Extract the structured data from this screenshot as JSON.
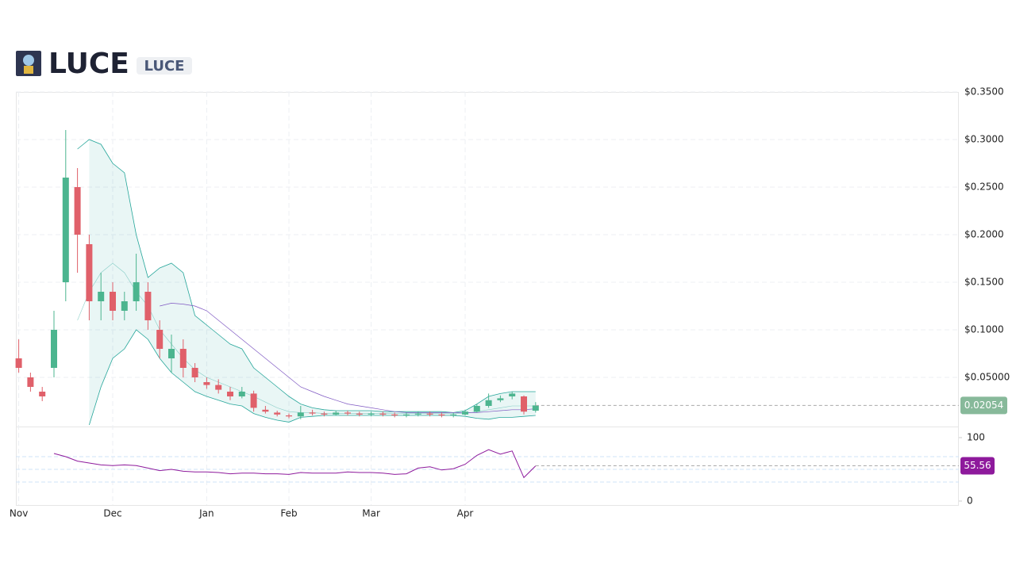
{
  "header": {
    "title": "LUCE",
    "badge": "LUCE"
  },
  "chart_data": {
    "type": "candlestick",
    "categories": [
      "Nov",
      null,
      null,
      null,
      null,
      null,
      null,
      null,
      "Dec",
      null,
      null,
      null,
      null,
      null,
      null,
      null,
      "Jan",
      null,
      null,
      null,
      null,
      null,
      null,
      "Feb",
      null,
      null,
      null,
      null,
      null,
      null,
      "Mar",
      null,
      null,
      null,
      null,
      null,
      null,
      null,
      "Apr",
      null,
      null,
      null,
      null,
      null,
      null
    ],
    "open": [
      0.07,
      0.05,
      0.035,
      0.06,
      0.15,
      0.25,
      0.19,
      0.13,
      0.14,
      0.12,
      0.13,
      0.14,
      0.1,
      0.07,
      0.08,
      0.06,
      0.045,
      0.042,
      0.035,
      0.03,
      0.033,
      0.016,
      0.013,
      0.01,
      0.009,
      0.013,
      0.012,
      0.011,
      0.013,
      0.012,
      0.011,
      0.012,
      0.011,
      0.01,
      0.011,
      0.012,
      0.011,
      0.01,
      0.011,
      0.014,
      0.02,
      0.026,
      0.03,
      0.03,
      0.015
    ],
    "high": [
      0.09,
      0.055,
      0.04,
      0.12,
      0.31,
      0.27,
      0.2,
      0.16,
      0.15,
      0.14,
      0.18,
      0.15,
      0.11,
      0.095,
      0.09,
      0.065,
      0.05,
      0.048,
      0.04,
      0.04,
      0.036,
      0.02,
      0.015,
      0.012,
      0.02,
      0.016,
      0.014,
      0.015,
      0.015,
      0.014,
      0.014,
      0.014,
      0.013,
      0.013,
      0.014,
      0.014,
      0.013,
      0.013,
      0.016,
      0.022,
      0.033,
      0.031,
      0.035,
      0.031,
      0.024
    ],
    "low": [
      0.055,
      0.035,
      0.025,
      0.05,
      0.13,
      0.16,
      0.11,
      0.11,
      0.11,
      0.11,
      0.12,
      0.1,
      0.07,
      0.055,
      0.05,
      0.045,
      0.038,
      0.033,
      0.026,
      0.028,
      0.014,
      0.012,
      0.009,
      0.007,
      0.006,
      0.01,
      0.009,
      0.01,
      0.01,
      0.009,
      0.009,
      0.009,
      0.008,
      0.008,
      0.009,
      0.009,
      0.008,
      0.008,
      0.01,
      0.013,
      0.018,
      0.024,
      0.027,
      0.011,
      0.013
    ],
    "close": [
      0.06,
      0.04,
      0.03,
      0.1,
      0.26,
      0.2,
      0.13,
      0.14,
      0.12,
      0.13,
      0.15,
      0.11,
      0.08,
      0.08,
      0.06,
      0.05,
      0.042,
      0.037,
      0.03,
      0.035,
      0.018,
      0.014,
      0.011,
      0.009,
      0.013,
      0.012,
      0.011,
      0.013,
      0.012,
      0.011,
      0.012,
      0.011,
      0.01,
      0.011,
      0.012,
      0.011,
      0.01,
      0.011,
      0.014,
      0.02,
      0.026,
      0.028,
      0.033,
      0.014,
      0.02054
    ],
    "up_color": "#4cb58f",
    "down_color": "#e0606a",
    "last_color": "#87b99a",
    "ylim": [
      0,
      0.35
    ],
    "yticks": [
      {
        "value": 0.05,
        "label": "$0.05000"
      },
      {
        "value": 0.1,
        "label": "$0.1000"
      },
      {
        "value": 0.15,
        "label": "$0.1500"
      },
      {
        "value": 0.2,
        "label": "$0.2000"
      },
      {
        "value": 0.25,
        "label": "$0.2500"
      },
      {
        "value": 0.3,
        "label": "$0.3000"
      },
      {
        "value": 0.35,
        "label": "$0.3500"
      }
    ],
    "grid": true,
    "bollinger": {
      "color": "#26a69a",
      "upper": [
        null,
        null,
        null,
        null,
        null,
        0.29,
        0.3,
        0.295,
        0.275,
        0.265,
        0.2,
        0.155,
        0.165,
        0.17,
        0.16,
        0.115,
        0.105,
        0.095,
        0.085,
        0.08,
        0.06,
        0.05,
        0.04,
        0.03,
        0.022,
        0.018,
        0.016,
        0.015,
        0.015,
        0.015,
        0.015,
        0.014,
        0.014,
        0.014,
        0.014,
        0.014,
        0.014,
        0.013,
        0.015,
        0.022,
        0.03,
        0.033,
        0.035,
        0.035,
        0.035
      ],
      "middle": [
        null,
        null,
        null,
        null,
        null,
        0.11,
        0.14,
        0.16,
        0.17,
        0.16,
        0.14,
        0.125,
        0.1,
        0.085,
        0.07,
        0.058,
        0.05,
        0.045,
        0.04,
        0.035,
        0.03,
        0.024,
        0.018,
        0.014,
        0.013,
        0.013,
        0.012,
        0.012,
        0.012,
        0.012,
        0.012,
        0.012,
        0.012,
        0.012,
        0.012,
        0.012,
        0.012,
        0.012,
        0.012,
        0.014,
        0.016,
        0.018,
        0.02,
        0.02,
        0.02
      ],
      "lower": [
        null,
        null,
        null,
        null,
        null,
        null,
        0.0,
        0.04,
        0.07,
        0.08,
        0.1,
        0.09,
        0.07,
        0.055,
        0.045,
        0.035,
        0.03,
        0.026,
        0.022,
        0.02,
        0.012,
        0.008,
        0.005,
        0.003,
        0.008,
        0.009,
        0.01,
        0.01,
        0.01,
        0.01,
        0.01,
        0.01,
        0.01,
        0.01,
        0.01,
        0.01,
        0.01,
        0.01,
        0.009,
        0.007,
        0.006,
        0.008,
        0.008,
        0.009,
        0.01
      ]
    },
    "sma": {
      "color": "#7e57c2",
      "values": [
        null,
        null,
        null,
        null,
        null,
        null,
        null,
        null,
        null,
        null,
        null,
        null,
        0.125,
        0.128,
        0.127,
        0.125,
        0.12,
        0.11,
        0.1,
        0.09,
        0.08,
        0.07,
        0.06,
        0.05,
        0.04,
        0.035,
        0.03,
        0.026,
        0.022,
        0.02,
        0.018,
        0.016,
        0.014,
        0.013,
        0.013,
        0.013,
        0.013,
        0.013,
        0.013,
        0.013,
        0.014,
        0.015,
        0.016,
        0.016,
        0.017
      ]
    },
    "rsi": {
      "color": "#8e1a9c",
      "ylim": [
        0,
        100
      ],
      "yticks": [
        0,
        100
      ],
      "levels": [
        30,
        50,
        70
      ],
      "values": [
        null,
        null,
        null,
        75,
        70,
        63,
        60,
        57,
        56,
        57,
        56,
        52,
        48,
        50,
        47,
        46,
        46,
        45,
        43,
        44,
        44,
        43,
        43,
        42,
        45,
        44,
        44,
        44,
        46,
        45,
        45,
        44,
        42,
        43,
        52,
        54,
        49,
        51,
        58,
        72,
        81,
        74,
        79,
        37,
        55.56
      ]
    }
  }
}
